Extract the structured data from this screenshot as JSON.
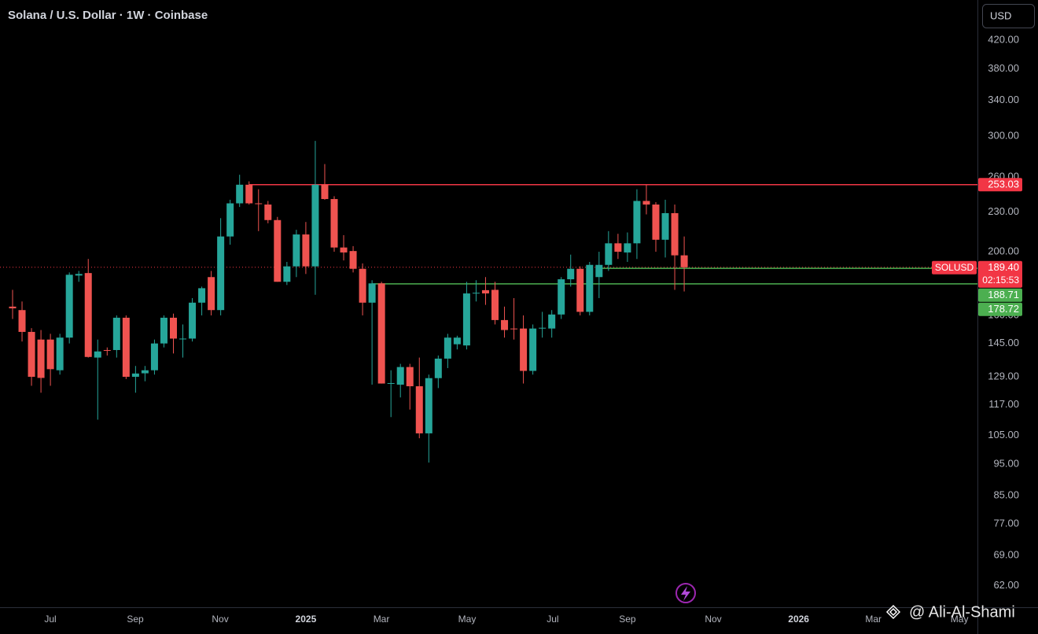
{
  "chart_data": {
    "type": "candlestick",
    "title": "Solana / U.S. Dollar · 1W · Coinbase",
    "currency": "USD",
    "log_scale": true,
    "up_color": "#26a69a",
    "down_color": "#ef5350",
    "open": [
      165,
      163,
      151,
      147,
      147,
      132,
      148,
      184,
      185.6,
      138,
      141.7,
      141.7,
      158.7,
      129,
      130.6,
      132,
      145,
      158.7,
      147.5,
      147.5,
      167.3,
      183,
      163,
      211,
      237,
      253,
      237,
      236,
      223.5,
      180,
      190,
      212.5,
      190,
      253,
      240.6,
      203,
      200.5,
      188.4,
      167.3,
      179,
      126,
      125.5,
      133.5,
      124.8,
      105.8,
      128.4,
      137.5,
      144.6,
      144,
      172.8,
      174.8,
      175,
      157.4,
      152.8,
      152.8,
      131.7,
      152.8,
      152.8,
      160.5,
      181.6,
      188.4,
      162,
      183,
      191,
      206,
      199.5,
      206,
      239,
      236,
      208.6,
      229,
      197.5
    ],
    "high": [
      175,
      168,
      153,
      152,
      150,
      150,
      186,
      187,
      195,
      147,
      143,
      160,
      160,
      134,
      134,
      147,
      160,
      161,
      155,
      170,
      177,
      187,
      225,
      240,
      262,
      256,
      249,
      239,
      226,
      193,
      216,
      222,
      295,
      272,
      243,
      212,
      204,
      192,
      181,
      180,
      132,
      135,
      135,
      138,
      130,
      139,
      150,
      149,
      180,
      181,
      183,
      180,
      165,
      170,
      160,
      155,
      162,
      163,
      183,
      198,
      190,
      193,
      200,
      215,
      213,
      214,
      249,
      253,
      238,
      240,
      236,
      211
    ],
    "low": [
      158,
      146,
      125,
      122,
      125,
      130,
      145,
      180,
      138,
      111,
      139,
      138,
      128,
      122,
      127,
      130,
      143,
      140,
      138,
      146,
      160,
      160,
      160,
      205,
      234,
      236,
      215,
      221,
      180,
      178,
      183,
      185,
      172,
      240,
      200,
      194,
      186,
      160,
      125.5,
      126,
      112,
      120,
      115,
      104,
      95.5,
      124,
      133,
      142,
      142,
      168,
      166,
      155,
      148,
      147,
      126,
      130,
      148,
      148,
      158,
      177,
      160,
      160,
      170,
      187,
      195,
      193,
      195,
      228,
      200,
      196,
      175,
      174
    ],
    "close": [
      164,
      151,
      129,
      128.5,
      132.5,
      148,
      184.5,
      185,
      138.3,
      141,
      141.5,
      158.7,
      129,
      130.5,
      132,
      145,
      158.7,
      147.5,
      147.5,
      167.3,
      176,
      163,
      211,
      237,
      253,
      237,
      236.5,
      223.5,
      180,
      190,
      212.5,
      190,
      253,
      240.6,
      203,
      199.5,
      188.4,
      167.3,
      179,
      126,
      126.2,
      133.5,
      124.8,
      105.8,
      128.4,
      137.5,
      148,
      148,
      172.8,
      173.2,
      172.8,
      157.4,
      152,
      152.5,
      131.7,
      152.8,
      153.2,
      160.5,
      181.6,
      188.4,
      162,
      191,
      191,
      206,
      200,
      206,
      239,
      236,
      208.6,
      229,
      197.5,
      189.4
    ],
    "xlim": [
      -1.33,
      102
    ],
    "xticks": [
      {
        "value": 3.99,
        "label": "Jul"
      },
      {
        "value": 12.97,
        "label": "Sep"
      },
      {
        "value": 21.95,
        "label": "Nov"
      },
      {
        "value": 31.0,
        "label": "2025"
      },
      {
        "value": 38.99,
        "label": "Mar"
      },
      {
        "value": 48.05,
        "label": "May"
      },
      {
        "value": 57.1,
        "label": "Jul"
      },
      {
        "value": 65.0,
        "label": "Sep"
      },
      {
        "value": 74.07,
        "label": "Nov"
      },
      {
        "value": 83.1,
        "label": "2026"
      },
      {
        "value": 91.0,
        "label": "Mar"
      },
      {
        "value": 100.1,
        "label": "May"
      }
    ],
    "ylim": [
      57.5,
      483.5
    ],
    "yticks": [
      {
        "value": 420,
        "label": "420.00"
      },
      {
        "value": 380,
        "label": "380.00"
      },
      {
        "value": 340,
        "label": "340.00"
      },
      {
        "value": 300,
        "label": "300.00"
      },
      {
        "value": 260,
        "label": "260.00"
      },
      {
        "value": 230,
        "label": "230.00"
      },
      {
        "value": 200,
        "label": "200.00"
      },
      {
        "value": 160,
        "label": "160.00"
      },
      {
        "value": 145,
        "label": "145.00"
      },
      {
        "value": 129,
        "label": "129.00"
      },
      {
        "value": 117,
        "label": "117.00"
      },
      {
        "value": 105,
        "label": "105.00"
      },
      {
        "value": 95,
        "label": "95.00"
      },
      {
        "value": 85,
        "label": "85.00"
      },
      {
        "value": 77,
        "label": "77.00"
      },
      {
        "value": 69,
        "label": "69.00"
      },
      {
        "value": 62,
        "label": "62.00"
      }
    ],
    "levels": [
      {
        "value": 253.03,
        "color": "#f23645",
        "from": 25
      },
      {
        "value": 188.71,
        "color": "#4caf50",
        "from": 62
      },
      {
        "value": 178.72,
        "color": "#4caf50",
        "from": 38
      }
    ],
    "last_price": {
      "symbol": "SOLUSD",
      "value": 189.4,
      "label": "189.40",
      "countdown": "02:15:53",
      "color": "#f23645"
    }
  },
  "watermark": "@ Ali-Al-Shami"
}
